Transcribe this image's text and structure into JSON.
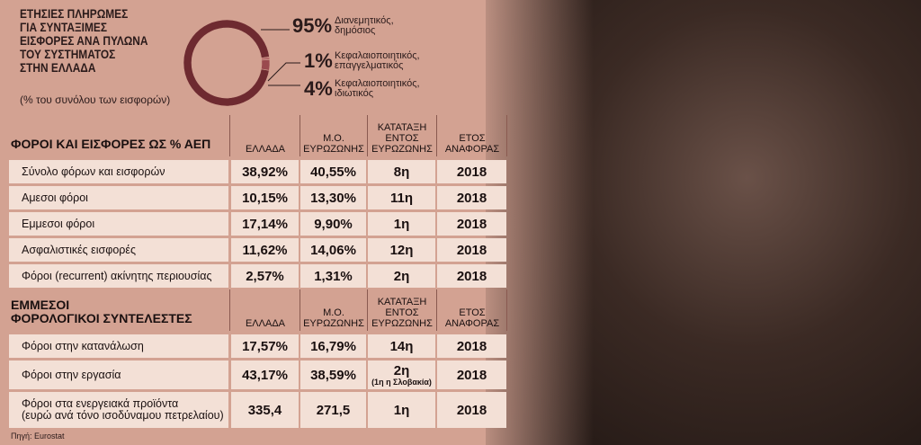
{
  "title": [
    "ΕΤΗΣΙΕΣ ΠΛΗΡΩΜΕΣ",
    "ΓΙΑ ΣΥΝΤΑΞΙΜΕΣ",
    "ΕΙΣΦΟΡΕΣ ΑΝΑ ΠΥΛΩΝΑ",
    "ΤΟΥ ΣΥΣΤΗΜΑΤΟΣ",
    "ΣΤΗΝ ΕΛΛΑΔΑ"
  ],
  "subtitle": "(% του συνόλου των εισφορών)",
  "donut": {
    "segments": [
      {
        "value": 95,
        "value_label": "95%",
        "label": [
          "Διανεμητικός,",
          "δημόσιος"
        ],
        "color": "#6e2a30"
      },
      {
        "value": 1,
        "value_label": "1%",
        "label": [
          "Κεφαλαιοποιητικός,",
          "επαγγελματικός"
        ],
        "color": "#b46a6a"
      },
      {
        "value": 4,
        "value_label": "4%",
        "label": [
          "Κεφαλαιοποιητικός,",
          "ιδιωτικός"
        ],
        "color": "#9a4a4e"
      }
    ]
  },
  "sections": [
    {
      "title": [
        "ΦΟΡΟΙ ΚΑΙ ΕΙΣΦΟΡΕΣ ΩΣ % ΑΕΠ"
      ],
      "columns": [
        [
          "ΕΛΛΑΔΑ"
        ],
        [
          "Μ.Ο.",
          "ΕΥΡΩΖΩΝΗΣ"
        ],
        [
          "ΚΑΤΑΤΑΞΗ",
          "ΕΝΤΟΣ",
          "ΕΥΡΩΖΩΝΗΣ"
        ],
        [
          "ΕΤΟΣ",
          "ΑΝΑΦΟΡΑΣ"
        ]
      ],
      "rows": [
        {
          "label": [
            "Σύνολο φόρων και εισφορών"
          ],
          "cells": [
            "38,92%",
            "40,55%",
            "8η",
            "2018"
          ]
        },
        {
          "label": [
            "Αμεσοι φόροι"
          ],
          "cells": [
            "10,15%",
            "13,30%",
            "11η",
            "2018"
          ]
        },
        {
          "label": [
            "Εμμεσοι φόροι"
          ],
          "cells": [
            "17,14%",
            "9,90%",
            "1η",
            "2018"
          ]
        },
        {
          "label": [
            "Ασφαλιστικές εισφορές"
          ],
          "cells": [
            "11,62%",
            "14,06%",
            "12η",
            "2018"
          ]
        },
        {
          "label": [
            "Φόροι (recurrent) ακίνητης περιουσίας"
          ],
          "cells": [
            "2,57%",
            "1,31%",
            "2η",
            "2018"
          ]
        }
      ]
    },
    {
      "title": [
        "ΕΜΜΕΣΟΙ",
        "ΦΟΡΟΛΟΓΙΚΟΙ ΣΥΝΤΕΛΕΣΤΕΣ"
      ],
      "columns": [
        [
          "ΕΛΛΑΔΑ"
        ],
        [
          "Μ.Ο.",
          "ΕΥΡΩΖΩΝΗΣ"
        ],
        [
          "ΚΑΤΑΤΑΞΗ",
          "ΕΝΤΟΣ",
          "ΕΥΡΩΖΩΝΗΣ"
        ],
        [
          "ΕΤΟΣ",
          "ΑΝΑΦΟΡΑΣ"
        ]
      ],
      "rows": [
        {
          "label": [
            "Φόροι στην κατανάλωση"
          ],
          "cells": [
            "17,57%",
            "16,79%",
            "14η",
            "2018"
          ]
        },
        {
          "label": [
            "Φόροι στην εργασία"
          ],
          "cells": [
            "43,17%",
            "38,59%",
            "2η",
            "2018"
          ],
          "note": "(1η η Σλοβακία)"
        },
        {
          "label": [
            "Φόροι στα ενεργειακά προϊόντα",
            "(ευρώ ανά τόνο ισοδύναμου πετρελαίου)"
          ],
          "cells": [
            "335,4",
            "271,5",
            "1η",
            "2018"
          ]
        }
      ]
    }
  ],
  "source": "Πηγή: Eurostat"
}
